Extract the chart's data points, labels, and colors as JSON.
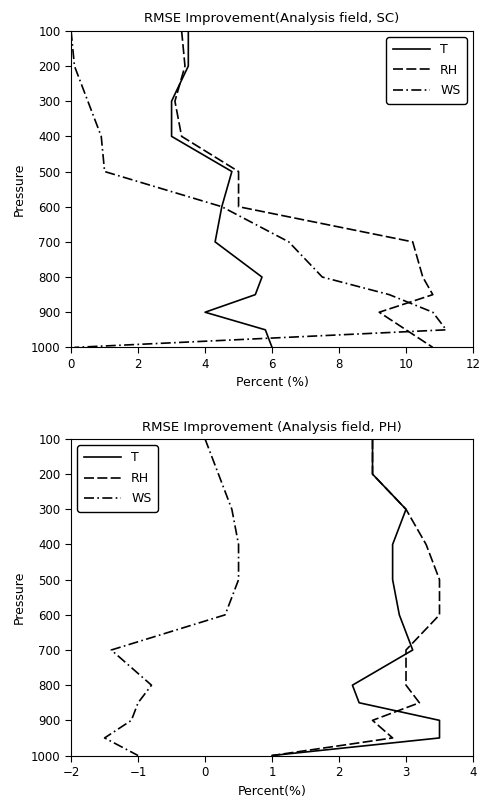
{
  "sc_title": "RMSE Improvement(Analysis field, SC)",
  "ph_title": "RMSE Improvement (Analysis field, PH)",
  "xlabel_sc": "Percent (%)",
  "xlabel_ph": "Percent(%)",
  "ylabel": "Pressure",
  "pressure_levels": [
    100,
    200,
    300,
    400,
    500,
    600,
    700,
    800,
    850,
    900,
    950,
    1000
  ],
  "sc_T": [
    3.5,
    3.5,
    3.0,
    3.0,
    4.8,
    4.5,
    4.3,
    5.7,
    5.5,
    4.0,
    5.8,
    6.0
  ],
  "sc_RH": [
    3.3,
    3.4,
    3.1,
    3.3,
    5.0,
    5.0,
    10.2,
    10.5,
    10.8,
    9.2,
    10.0,
    10.8
  ],
  "sc_WS": [
    0.0,
    0.1,
    0.5,
    0.9,
    1.0,
    4.5,
    6.5,
    7.5,
    9.5,
    10.8,
    11.2,
    0.1
  ],
  "ph_T": [
    2.5,
    2.5,
    3.0,
    2.8,
    2.8,
    2.9,
    3.1,
    2.2,
    2.3,
    3.5,
    3.5,
    1.0
  ],
  "ph_RH": [
    2.5,
    2.5,
    3.0,
    3.3,
    3.5,
    3.5,
    3.0,
    3.0,
    3.2,
    2.5,
    2.8,
    1.0
  ],
  "ph_WS": [
    0.0,
    0.2,
    0.4,
    0.5,
    0.5,
    0.3,
    -1.4,
    -0.8,
    -1.0,
    -1.1,
    -1.5,
    -1.0
  ],
  "sc_xlim": [
    0,
    12
  ],
  "sc_xticks": [
    0,
    2,
    4,
    6,
    8,
    10,
    12
  ],
  "ph_xlim": [
    -2,
    4
  ],
  "ph_xticks": [
    -2,
    -1,
    0,
    1,
    2,
    3,
    4
  ],
  "yticks": [
    100,
    200,
    300,
    400,
    500,
    600,
    700,
    800,
    900,
    1000
  ],
  "line_color": "#000000",
  "linewidth": 1.2
}
